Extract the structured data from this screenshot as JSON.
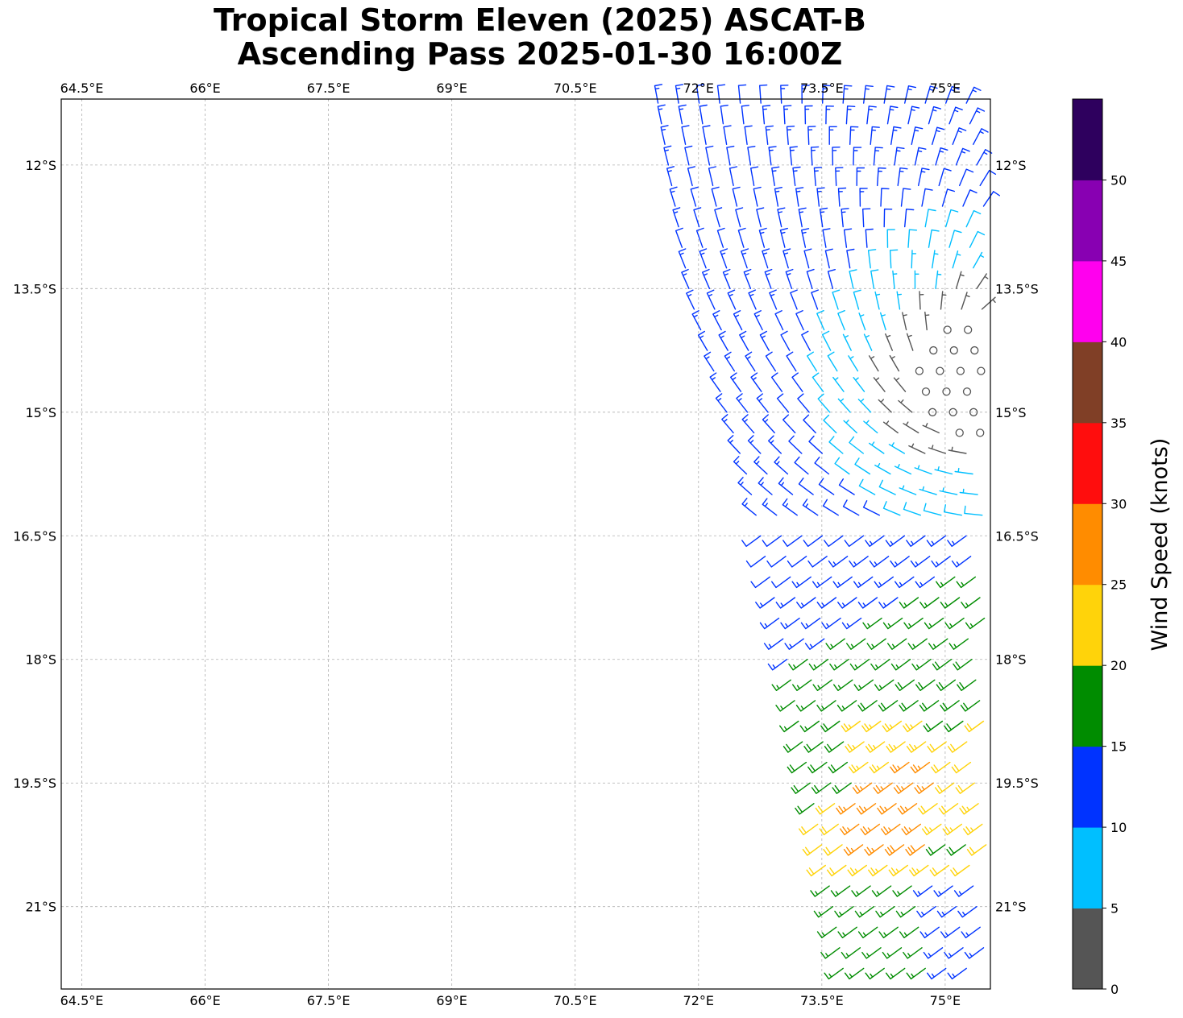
{
  "title": {
    "line1": "Tropical Storm Eleven (2025) ASCAT-B",
    "line2": "Ascending Pass 2025-01-30 16:00Z"
  },
  "map": {
    "lon_range": [
      64.25,
      75.55
    ],
    "lat_range": [
      -22.0,
      -11.2
    ],
    "lon_ticks": [
      64.5,
      66,
      67.5,
      69,
      70.5,
      72,
      73.5,
      75
    ],
    "lon_tick_labels": [
      "64.5°E",
      "66°E",
      "67.5°E",
      "69°E",
      "70.5°E",
      "72°E",
      "73.5°E",
      "75°E"
    ],
    "lat_ticks": [
      -12,
      -13.5,
      -15,
      -16.5,
      -18,
      -19.5,
      -21
    ],
    "lat_tick_labels": [
      "12°S",
      "13.5°S",
      "15°S",
      "16.5°S",
      "18°S",
      "19.5°S",
      "21°S"
    ],
    "gridlines": true,
    "barb_units": "knots"
  },
  "colorbar": {
    "label": "Wind Speed (knots)",
    "bounds": [
      0,
      5,
      10,
      15,
      20,
      25,
      30,
      35,
      40,
      45,
      50,
      55
    ],
    "tick_labels": [
      "0",
      "5",
      "10",
      "15",
      "20",
      "25",
      "30",
      "35",
      "40",
      "45",
      "50"
    ],
    "colors": [
      "#555555",
      "#00bfff",
      "#0033ff",
      "#008c00",
      "#ffd30a",
      "#ff8c00",
      "#ff0d0d",
      "#803f26",
      "#ff00ee",
      "#8800b2",
      "#2e005e"
    ]
  },
  "swath": {
    "west_edge": [
      [
        71.5,
        -11.2
      ],
      [
        71.9,
        -13.6
      ],
      [
        72.6,
        -15.8
      ],
      [
        73.0,
        -17.6
      ],
      [
        73.3,
        -19.2
      ],
      [
        73.6,
        -20.8
      ],
      [
        73.8,
        -22.0
      ]
    ],
    "east_lon": 75.55
  },
  "wind_field": {
    "description_free": true,
    "center": [
      75.3,
      -14.6
    ],
    "calm_radius_deg": 1.2
  }
}
